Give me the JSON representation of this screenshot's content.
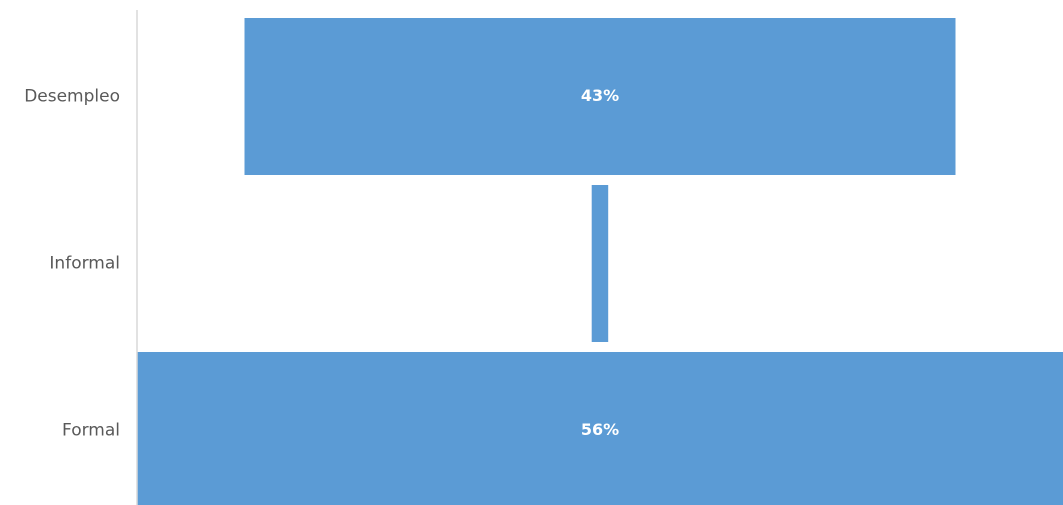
{
  "chart_data": {
    "type": "bar",
    "orientation": "horizontal",
    "style": "funnel",
    "categories": [
      "Desempleo",
      "Informal",
      "Formal"
    ],
    "values": [
      43,
      1,
      56
    ],
    "data_labels": [
      "43%",
      "",
      "56%"
    ],
    "value_unit": "%",
    "title": "",
    "xlabel": "",
    "ylabel": "",
    "xlim": [
      0,
      56
    ],
    "grid": false,
    "legend": "none",
    "bar_color": "#5b9bd5",
    "label_color": "#ffffff",
    "category_label_color": "#595959",
    "axis_color": "#d9d9d9"
  }
}
